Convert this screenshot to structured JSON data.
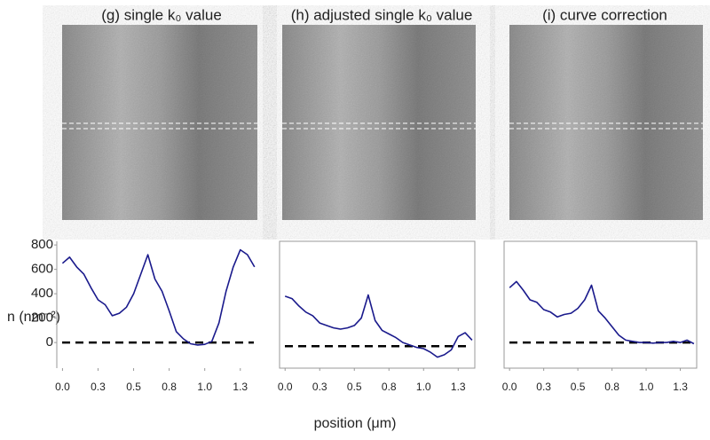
{
  "chart_data": [
    {
      "type": "line",
      "title": "(g) single k₀ value",
      "x": [
        0,
        0.05,
        0.1,
        0.15,
        0.2,
        0.25,
        0.3,
        0.35,
        0.4,
        0.45,
        0.5,
        0.55,
        0.6,
        0.65,
        0.7,
        0.75,
        0.8,
        0.85,
        0.9,
        0.95,
        1.0,
        1.05,
        1.1,
        1.15,
        1.2,
        1.25,
        1.3,
        1.35
      ],
      "series": [
        {
          "color": "#1a1a8c",
          "values": [
            650,
            700,
            620,
            560,
            450,
            350,
            310,
            220,
            240,
            290,
            400,
            560,
            720,
            520,
            420,
            260,
            90,
            30,
            -10,
            -20,
            -15,
            10,
            160,
            420,
            620,
            760,
            720,
            620
          ]
        }
      ],
      "xlim": [
        -0.04,
        1.37
      ],
      "ylim": [
        -210,
        830
      ],
      "xticks": [
        {
          "value": 0,
          "label": "0.0"
        },
        {
          "value": 0.25,
          "label": "0.3"
        },
        0.5,
        {
          "value": 0.75,
          "label": "0.8"
        },
        {
          "value": 1,
          "label": "1.0"
        },
        {
          "value": 1.25,
          "label": "1.3"
        }
      ],
      "yticks": [
        0,
        200,
        400,
        600,
        800
      ],
      "hline": 0
    },
    {
      "type": "line",
      "title": "(h) adjusted single k₀ value",
      "x": [
        0,
        0.05,
        0.1,
        0.15,
        0.2,
        0.25,
        0.3,
        0.35,
        0.4,
        0.45,
        0.5,
        0.55,
        0.6,
        0.65,
        0.7,
        0.75,
        0.8,
        0.85,
        0.9,
        0.95,
        1.0,
        1.05,
        1.1,
        1.15,
        1.2,
        1.25,
        1.3,
        1.35
      ],
      "series": [
        {
          "color": "#1a1a8c",
          "values": [
            380,
            360,
            300,
            250,
            220,
            160,
            140,
            120,
            110,
            120,
            140,
            200,
            390,
            180,
            100,
            70,
            40,
            0,
            -20,
            -40,
            -50,
            -80,
            -120,
            -100,
            -60,
            50,
            80,
            20
          ]
        }
      ],
      "xlim": [
        -0.04,
        1.37
      ],
      "ylim": [
        -210,
        830
      ],
      "xticks": [
        {
          "value": 0,
          "label": "0.0"
        },
        {
          "value": 0.25,
          "label": "0.3"
        },
        0.5,
        {
          "value": 0.75,
          "label": "0.8"
        },
        {
          "value": 1,
          "label": "1.0"
        },
        {
          "value": 1.25,
          "label": "1.3"
        }
      ],
      "hline": -30
    },
    {
      "type": "line",
      "title": "(i) curve correction",
      "x": [
        0,
        0.05,
        0.1,
        0.15,
        0.2,
        0.25,
        0.3,
        0.35,
        0.4,
        0.45,
        0.5,
        0.55,
        0.6,
        0.65,
        0.7,
        0.75,
        0.8,
        0.85,
        0.9,
        0.95,
        1.0,
        1.05,
        1.1,
        1.15,
        1.2,
        1.25,
        1.3,
        1.35
      ],
      "series": [
        {
          "color": "#1a1a8c",
          "values": [
            450,
            500,
            430,
            350,
            330,
            270,
            250,
            210,
            230,
            240,
            280,
            350,
            470,
            260,
            200,
            130,
            60,
            20,
            10,
            0,
            0,
            -5,
            0,
            0,
            10,
            0,
            20,
            -10
          ]
        }
      ],
      "xlim": [
        -0.04,
        1.37
      ],
      "ylim": [
        -210,
        830
      ],
      "xticks": [
        {
          "value": 0,
          "label": "0.0"
        },
        {
          "value": 0.25,
          "label": "0.3"
        },
        0.5,
        {
          "value": 0.75,
          "label": "0.8"
        },
        {
          "value": 1,
          "label": "1.0"
        },
        {
          "value": 1.25,
          "label": "1.3"
        }
      ],
      "hline": 0
    }
  ],
  "ylabel": "n (nm⁻²)",
  "xlabel": "position (μm)"
}
